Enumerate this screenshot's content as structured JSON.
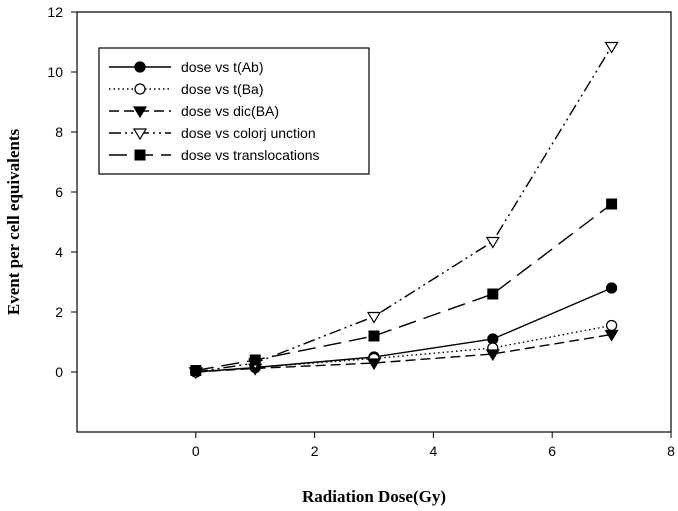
{
  "chart_data": {
    "type": "line",
    "title": "",
    "xlabel": "Radiation Dose(Gy)",
    "ylabel": "Event per cell equivalents",
    "xlim": [
      -2,
      8
    ],
    "ylim": [
      -2,
      12
    ],
    "x_ticks": [
      0,
      2,
      4,
      6,
      8
    ],
    "y_ticks": [
      0,
      2,
      4,
      6,
      8,
      10,
      12
    ],
    "grid": false,
    "legend_position": "top-left",
    "x": [
      0,
      1,
      3,
      5,
      7
    ],
    "series": [
      {
        "name": "dose vs t(Ab)",
        "values": [
          0.0,
          0.15,
          0.5,
          1.1,
          2.8
        ],
        "marker": "filled-circle",
        "line_style": "solid",
        "color": "#000000"
      },
      {
        "name": "dose vs t(Ba)",
        "values": [
          0.0,
          0.15,
          0.45,
          0.8,
          1.55
        ],
        "marker": "open-circle",
        "line_style": "dotted",
        "color": "#000000"
      },
      {
        "name": "dose vs dic(BA)",
        "values": [
          0.0,
          0.12,
          0.3,
          0.6,
          1.25
        ],
        "marker": "filled-triangle-down",
        "line_style": "dashed",
        "color": "#000000"
      },
      {
        "name": "dose vs colorj unction",
        "values": [
          0.0,
          0.3,
          1.85,
          4.35,
          10.85
        ],
        "marker": "open-triangle-down",
        "line_style": "dash-dot-dot",
        "color": "#000000"
      },
      {
        "name": "dose vs translocations",
        "values": [
          0.05,
          0.4,
          1.2,
          2.6,
          5.6
        ],
        "marker": "filled-square",
        "line_style": "long-dash",
        "color": "#000000"
      }
    ]
  }
}
